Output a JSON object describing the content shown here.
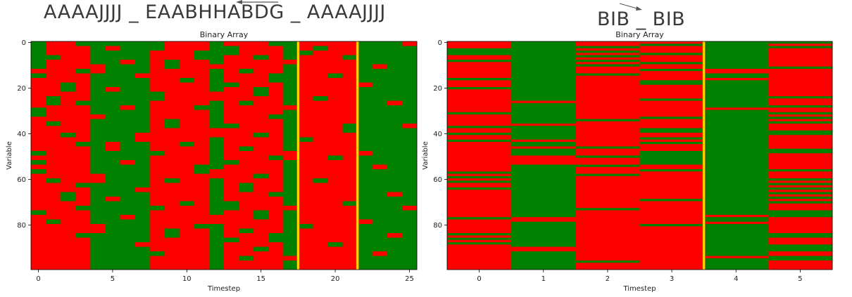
{
  "headings": {
    "left": "AAAAJJJJ _ EAABHHABDG _ AAAAJJJJ",
    "right": "BIB _ BIB"
  },
  "colors": {
    "on": "#ff0000",
    "off": "#008000",
    "separator": "#ffd700",
    "separator_edge": "#e03000"
  },
  "chart_data": [
    {
      "type": "heatmap",
      "title": "Binary Array",
      "xlabel": "Timestep",
      "ylabel": "Variable",
      "n_timesteps": 26,
      "n_variables": 100,
      "xticks": [
        0,
        5,
        10,
        15,
        20,
        25
      ],
      "yticks": [
        0,
        20,
        40,
        60,
        80
      ],
      "separators_after_timestep": [
        17,
        21
      ],
      "column_base": [
        "red",
        "red",
        "red",
        "red",
        "green",
        "green",
        "green",
        "green",
        "red",
        "red",
        "red",
        "red",
        "green",
        "red",
        "red",
        "red",
        "red",
        "green",
        "red",
        "red",
        "red",
        "red",
        "green",
        "green",
        "green",
        "green"
      ],
      "column_flips": [
        [
          [
            0,
            12
          ],
          [
            14,
            16
          ],
          [
            29,
            33
          ],
          [
            48,
            50
          ],
          [
            52,
            54
          ],
          [
            56,
            58
          ],
          [
            74,
            76
          ]
        ],
        [
          [
            6,
            8
          ],
          [
            24,
            28
          ],
          [
            35,
            37
          ],
          [
            60,
            62
          ],
          [
            78,
            80
          ]
        ],
        [
          [
            18,
            22
          ],
          [
            40,
            42
          ],
          [
            66,
            70
          ]
        ],
        [
          [
            0,
            2
          ],
          [
            12,
            14
          ],
          [
            26,
            28
          ],
          [
            44,
            46
          ],
          [
            62,
            64
          ],
          [
            72,
            74
          ],
          [
            84,
            86
          ]
        ],
        [
          [
            10,
            14
          ],
          [
            32,
            34
          ],
          [
            58,
            62
          ],
          [
            80,
            84
          ]
        ],
        [
          [
            2,
            4
          ],
          [
            20,
            22
          ],
          [
            44,
            48
          ],
          [
            68,
            70
          ]
        ],
        [
          [
            8,
            10
          ],
          [
            28,
            30
          ],
          [
            52,
            54
          ],
          [
            76,
            78
          ]
        ],
        [
          [
            14,
            16
          ],
          [
            40,
            44
          ],
          [
            64,
            66
          ],
          [
            88,
            90
          ]
        ],
        [
          [
            0,
            4
          ],
          [
            22,
            26
          ],
          [
            48,
            50
          ],
          [
            72,
            74
          ],
          [
            92,
            94
          ]
        ],
        [
          [
            8,
            12
          ],
          [
            34,
            38
          ],
          [
            60,
            62
          ],
          [
            82,
            86
          ]
        ],
        [
          [
            16,
            18
          ],
          [
            44,
            46
          ],
          [
            70,
            72
          ]
        ],
        [
          [
            4,
            8
          ],
          [
            28,
            30
          ],
          [
            54,
            58
          ],
          [
            80,
            82
          ]
        ],
        [
          [
            10,
            12
          ],
          [
            22,
            26
          ],
          [
            38,
            42
          ],
          [
            56,
            60
          ],
          [
            76,
            80
          ]
        ],
        [
          [
            2,
            6
          ],
          [
            18,
            20
          ],
          [
            36,
            38
          ],
          [
            52,
            54
          ],
          [
            70,
            74
          ],
          [
            86,
            88
          ]
        ],
        [
          [
            12,
            14
          ],
          [
            26,
            28
          ],
          [
            46,
            48
          ],
          [
            62,
            66
          ],
          [
            82,
            84
          ],
          [
            94,
            96
          ]
        ],
        [
          [
            6,
            8
          ],
          [
            20,
            24
          ],
          [
            40,
            42
          ],
          [
            58,
            60
          ],
          [
            74,
            78
          ],
          [
            90,
            92
          ]
        ],
        [
          [
            0,
            2
          ],
          [
            14,
            18
          ],
          [
            32,
            34
          ],
          [
            50,
            52
          ],
          [
            66,
            68
          ],
          [
            84,
            88
          ]
        ],
        [
          [
            8,
            10
          ],
          [
            28,
            30
          ],
          [
            48,
            52
          ],
          [
            72,
            74
          ],
          [
            94,
            96
          ]
        ],
        [
          [
            4,
            6
          ],
          [
            42,
            44
          ],
          [
            80,
            82
          ]
        ],
        [
          [
            2,
            4
          ],
          [
            24,
            26
          ],
          [
            60,
            62
          ]
        ],
        [
          [
            14,
            16
          ],
          [
            50,
            52
          ],
          [
            88,
            90
          ]
        ],
        [
          [
            6,
            8
          ],
          [
            36,
            40
          ],
          [
            70,
            72
          ]
        ],
        [
          [
            18,
            20
          ],
          [
            48,
            50
          ],
          [
            78,
            80
          ]
        ],
        [
          [
            10,
            12
          ],
          [
            54,
            56
          ],
          [
            92,
            94
          ]
        ],
        [
          [
            26,
            28
          ],
          [
            66,
            68
          ],
          [
            84,
            86
          ]
        ],
        [
          [
            0,
            2
          ],
          [
            36,
            38
          ],
          [
            72,
            74
          ]
        ]
      ]
    },
    {
      "type": "heatmap",
      "title": "Binary Array",
      "xlabel": "Timestep",
      "ylabel": "Variable",
      "n_timesteps": 6,
      "n_variables": 100,
      "xticks": [
        0,
        1,
        2,
        3,
        4,
        5
      ],
      "yticks": [
        0,
        20,
        40,
        60,
        80
      ],
      "separators_after_timestep": [
        3
      ],
      "column_base": [
        "red",
        "green",
        "red",
        "red",
        "green",
        "red"
      ],
      "column_flips": [
        [
          [
            3,
            6
          ],
          [
            8,
            9
          ],
          [
            16,
            17
          ],
          [
            20,
            21
          ],
          [
            31,
            32
          ],
          [
            37,
            38
          ],
          [
            40,
            41
          ],
          [
            43,
            44
          ],
          [
            57,
            58
          ],
          [
            59,
            60
          ],
          [
            61,
            62
          ],
          [
            64,
            65
          ],
          [
            77,
            78
          ],
          [
            84,
            85
          ],
          [
            86,
            87
          ],
          [
            88,
            89
          ]
        ],
        [
          [
            26,
            27
          ],
          [
            36,
            37
          ],
          [
            43,
            44
          ],
          [
            46,
            47
          ],
          [
            50,
            54
          ],
          [
            77,
            79
          ],
          [
            90,
            92
          ]
        ],
        [
          [
            2,
            3
          ],
          [
            4,
            5
          ],
          [
            6,
            7
          ],
          [
            8,
            9
          ],
          [
            10,
            11
          ],
          [
            14,
            15
          ],
          [
            34,
            35
          ],
          [
            46,
            47
          ],
          [
            50,
            51
          ],
          [
            54,
            55
          ],
          [
            58,
            59
          ],
          [
            73,
            74
          ],
          [
            96,
            97
          ]
        ],
        [
          [
            1,
            2
          ],
          [
            5,
            6
          ],
          [
            9,
            10
          ],
          [
            12,
            13
          ],
          [
            17,
            19
          ],
          [
            25,
            26
          ],
          [
            33,
            34
          ],
          [
            38,
            40
          ],
          [
            42,
            43
          ],
          [
            44,
            45
          ],
          [
            48,
            54
          ],
          [
            56,
            57
          ],
          [
            69,
            70
          ],
          [
            80,
            81
          ]
        ],
        [
          [
            12,
            14
          ],
          [
            16,
            17
          ],
          [
            29,
            30
          ],
          [
            76,
            77
          ],
          [
            79,
            80
          ],
          [
            94,
            95
          ]
        ],
        [
          [
            0,
            1
          ],
          [
            2,
            3
          ],
          [
            11,
            12
          ],
          [
            24,
            25
          ],
          [
            28,
            29
          ],
          [
            31,
            32
          ],
          [
            33,
            34
          ],
          [
            35,
            36
          ],
          [
            39,
            41
          ],
          [
            47,
            49
          ],
          [
            56,
            57
          ],
          [
            60,
            61
          ],
          [
            62,
            63
          ],
          [
            64,
            65
          ],
          [
            66,
            67
          ],
          [
            68,
            69
          ],
          [
            70,
            71
          ],
          [
            74,
            77
          ],
          [
            84,
            86
          ],
          [
            89,
            92
          ],
          [
            94,
            96
          ]
        ]
      ]
    }
  ]
}
